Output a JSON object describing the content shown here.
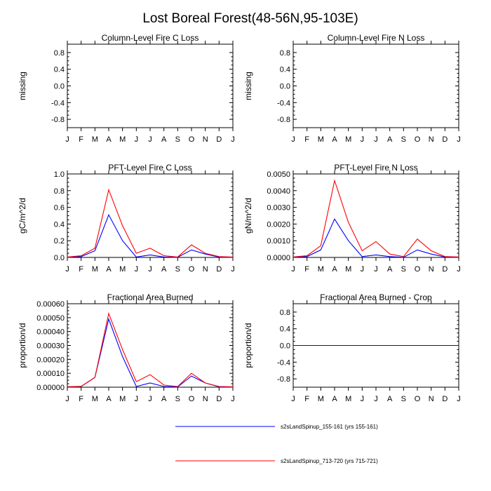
{
  "page_title": "Lost Boreal Forest(48-56N,95-103E)",
  "colors": {
    "series1": "#0000ff",
    "series2": "#ff0000",
    "axis": "#000000"
  },
  "legend": [
    {
      "label": "s2sLandSpinup_155-161 (yrs 155-161)",
      "color": "#0000ff"
    },
    {
      "label": "s2sLandSpinup_713-720 (yrs 715-721)",
      "color": "#ff0000"
    }
  ],
  "chart_data": [
    {
      "type": "line",
      "title": "Column-Level Fire C Loss",
      "ylabel": "missing",
      "categories": [
        "J",
        "F",
        "M",
        "A",
        "M",
        "J",
        "J",
        "A",
        "S",
        "O",
        "N",
        "D",
        "J"
      ],
      "ylim": [
        -1.0,
        1.0
      ],
      "yticks": [
        -0.8,
        -0.4,
        0.0,
        0.4,
        0.8
      ],
      "ytick_labels": [
        "-0.8",
        "-0.4",
        "0.0",
        "0.4",
        "0.8"
      ],
      "series": []
    },
    {
      "type": "line",
      "title": "Column-Level Fire N Loss",
      "ylabel": "missing",
      "categories": [
        "J",
        "F",
        "M",
        "A",
        "M",
        "J",
        "J",
        "A",
        "S",
        "O",
        "N",
        "D",
        "J"
      ],
      "ylim": [
        -1.0,
        1.0
      ],
      "yticks": [
        -0.8,
        -0.4,
        0.0,
        0.4,
        0.8
      ],
      "ytick_labels": [
        "-0.8",
        "-0.4",
        "0.0",
        "0.4",
        "0.8"
      ],
      "series": []
    },
    {
      "type": "line",
      "title": "PFT-Level Fire C Loss",
      "ylabel": "gC/m^2/d",
      "categories": [
        "J",
        "F",
        "M",
        "A",
        "M",
        "J",
        "J",
        "A",
        "S",
        "O",
        "N",
        "D",
        "J"
      ],
      "ylim": [
        0,
        1.0
      ],
      "yticks": [
        0,
        0.2,
        0.4,
        0.6,
        0.8,
        1.0
      ],
      "ytick_labels": [
        "0.0",
        "0.2",
        "0.4",
        "0.6",
        "0.8",
        "1.0"
      ],
      "series": [
        {
          "name": "s2sLandSpinup_155-161 (yrs 155-161)",
          "color": "#0000ff",
          "values": [
            0.0,
            0.01,
            0.08,
            0.51,
            0.2,
            0.005,
            0.03,
            0.005,
            0.002,
            0.09,
            0.04,
            0.005,
            0.0
          ]
        },
        {
          "name": "s2sLandSpinup_713-720 (yrs 715-721)",
          "color": "#ff0000",
          "values": [
            0.005,
            0.02,
            0.11,
            0.81,
            0.38,
            0.05,
            0.11,
            0.02,
            0.005,
            0.15,
            0.05,
            0.01,
            0.005
          ]
        }
      ]
    },
    {
      "type": "line",
      "title": "PFT-Level Fire N Loss",
      "ylabel": "gN/m^2/d",
      "categories": [
        "J",
        "F",
        "M",
        "A",
        "M",
        "J",
        "J",
        "A",
        "S",
        "O",
        "N",
        "D",
        "J"
      ],
      "ylim": [
        0,
        0.005
      ],
      "yticks": [
        0,
        0.001,
        0.002,
        0.003,
        0.004,
        0.005
      ],
      "ytick_labels": [
        "0.0000",
        "0.0010",
        "0.0020",
        "0.0030",
        "0.0040",
        "0.0050"
      ],
      "series": [
        {
          "name": "s2sLandSpinup_155-161 (yrs 155-161)",
          "color": "#0000ff",
          "values": [
            0.0,
            5e-05,
            0.00045,
            0.0023,
            0.001,
            5e-05,
            0.00015,
            5e-05,
            1e-05,
            0.00045,
            0.0002,
            3e-05,
            0.0
          ]
        },
        {
          "name": "s2sLandSpinup_713-720 (yrs 715-721)",
          "color": "#ff0000",
          "values": [
            3e-05,
            0.0001,
            0.0007,
            0.0046,
            0.0021,
            0.0004,
            0.00095,
            0.0002,
            5e-05,
            0.0011,
            0.0004,
            5e-05,
            3e-05
          ]
        }
      ]
    },
    {
      "type": "line",
      "title": "Fractional Area Burned",
      "ylabel": "proportion/d",
      "categories": [
        "J",
        "F",
        "M",
        "A",
        "M",
        "J",
        "J",
        "A",
        "S",
        "O",
        "N",
        "D",
        "J"
      ],
      "ylim": [
        0,
        0.0006
      ],
      "yticks": [
        0,
        0.0001,
        0.0002,
        0.0003,
        0.0004,
        0.0005,
        0.0006
      ],
      "ytick_labels": [
        "0.00000",
        "0.00010",
        "0.00020",
        "0.00030",
        "0.00040",
        "0.00050",
        "0.00060"
      ],
      "series": [
        {
          "name": "s2sLandSpinup_155-161 (yrs 155-161)",
          "color": "#0000ff",
          "values": [
            3e-06,
            5e-06,
            7e-05,
            0.00049,
            0.00022,
            5e-06,
            3e-05,
            5e-06,
            2e-06,
            8e-05,
            3e-05,
            3e-06,
            0.0
          ]
        },
        {
          "name": "s2sLandSpinup_713-720 (yrs 715-721)",
          "color": "#ff0000",
          "values": [
            3e-06,
            6e-06,
            7e-05,
            0.00053,
            0.00027,
            4e-05,
            9e-05,
            1.5e-05,
            5e-06,
            0.0001,
            3e-05,
            5e-06,
            3e-06
          ]
        }
      ]
    },
    {
      "type": "line",
      "title": "Fractional Area Burned - Crop",
      "ylabel": "proportion/d",
      "categories": [
        "J",
        "F",
        "M",
        "A",
        "M",
        "J",
        "J",
        "A",
        "S",
        "O",
        "N",
        "D",
        "J"
      ],
      "ylim": [
        -1.0,
        1.0
      ],
      "yticks": [
        -0.8,
        -0.4,
        0.0,
        0.4,
        0.8
      ],
      "ytick_labels": [
        "-0.8",
        "-0.4",
        "0.0",
        "0.4",
        "0.8"
      ],
      "series": [
        {
          "name": "s2sLandSpinup_713-720 (yrs 715-721)",
          "color": "#ff0000",
          "values": [
            0,
            0,
            0,
            0,
            0,
            0,
            0,
            0,
            0,
            0,
            0,
            0,
            0
          ]
        },
        {
          "name": "s2sLandSpinup_155-161 (yrs 155-161)",
          "color": "#0000ff",
          "values": [
            0,
            0,
            0,
            0,
            0,
            0,
            0,
            0,
            0,
            0,
            0,
            0,
            0
          ]
        }
      ]
    }
  ]
}
